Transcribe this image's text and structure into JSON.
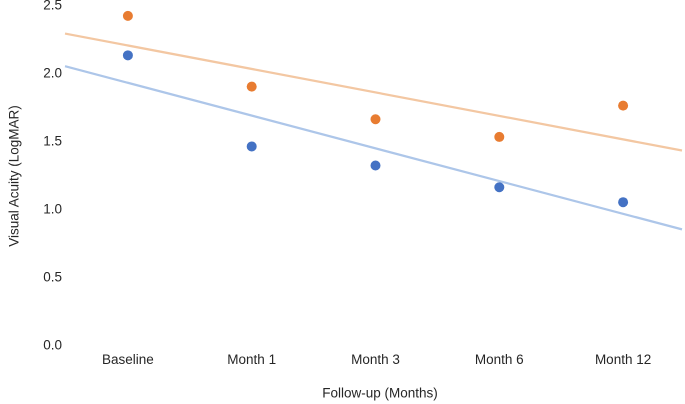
{
  "chart_data": {
    "type": "scatter",
    "title": "",
    "xlabel": "Follow-up (Months)",
    "ylabel": "Visual Acuity (LogMAR)",
    "categories": [
      "Baseline",
      "Month 1",
      "Month 3",
      "Month 6",
      "Month 12"
    ],
    "y_ticks": [
      "0.0",
      "0.5",
      "1.0",
      "1.5",
      "2.0",
      "2.5"
    ],
    "ylim": [
      0,
      2.5
    ],
    "grid": false,
    "legend_position": "none",
    "series": [
      {
        "name": "series-orange",
        "color": "#E87C31",
        "values": [
          2.42,
          1.9,
          1.66,
          1.53,
          1.76
        ],
        "trendline": {
          "color": "#F3C7A2",
          "start_value": 2.29,
          "end_value": 1.43
        }
      },
      {
        "name": "series-blue",
        "color": "#4472C4",
        "values": [
          2.13,
          1.46,
          1.32,
          1.16,
          1.05
        ],
        "trendline": {
          "color": "#ADC6E9",
          "start_value": 2.05,
          "end_value": 0.85
        }
      }
    ]
  }
}
